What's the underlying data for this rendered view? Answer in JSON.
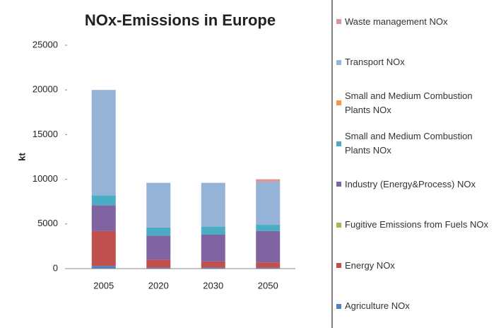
{
  "chart_data": {
    "type": "stacked_bar",
    "title": "NOx-Emissions in Europe",
    "y_label": "kt",
    "categories": [
      "2005",
      "2020",
      "2030",
      "2050"
    ],
    "series": [
      {
        "name": "Agriculture NOx",
        "color": "#4f81bd",
        "values": [
          300,
          100,
          100,
          100
        ]
      },
      {
        "name": "Energy NOx",
        "color": "#c0504d",
        "values": [
          3900,
          900,
          700,
          600
        ]
      },
      {
        "name": "Fugitive Emissions from Fuels NOx",
        "color": "#9bbb59",
        "values": [
          0,
          0,
          0,
          0
        ]
      },
      {
        "name": "Industry (Energy&Process) NOx",
        "color": "#8064a2",
        "values": [
          2900,
          2700,
          3000,
          3500
        ]
      },
      {
        "name": "Small and Medium Combustion Plants NOx",
        "color": "#4bacc6",
        "values": [
          1100,
          900,
          900,
          700
        ]
      },
      {
        "name": "Small and Medium Combustion Plants NOx",
        "color": "#f79646",
        "values": [
          0,
          0,
          0,
          0
        ]
      },
      {
        "name": "Transport NOx",
        "color": "#95b3d7",
        "values": [
          11800,
          5000,
          4900,
          4800
        ]
      },
      {
        "name": "Waste management NOx",
        "color": "#d99694",
        "values": [
          0,
          0,
          0,
          300
        ]
      }
    ],
    "ylim": [
      0,
      25000
    ],
    "yticks": [
      0,
      5000,
      10000,
      15000,
      20000,
      25000
    ],
    "legend": "right"
  }
}
